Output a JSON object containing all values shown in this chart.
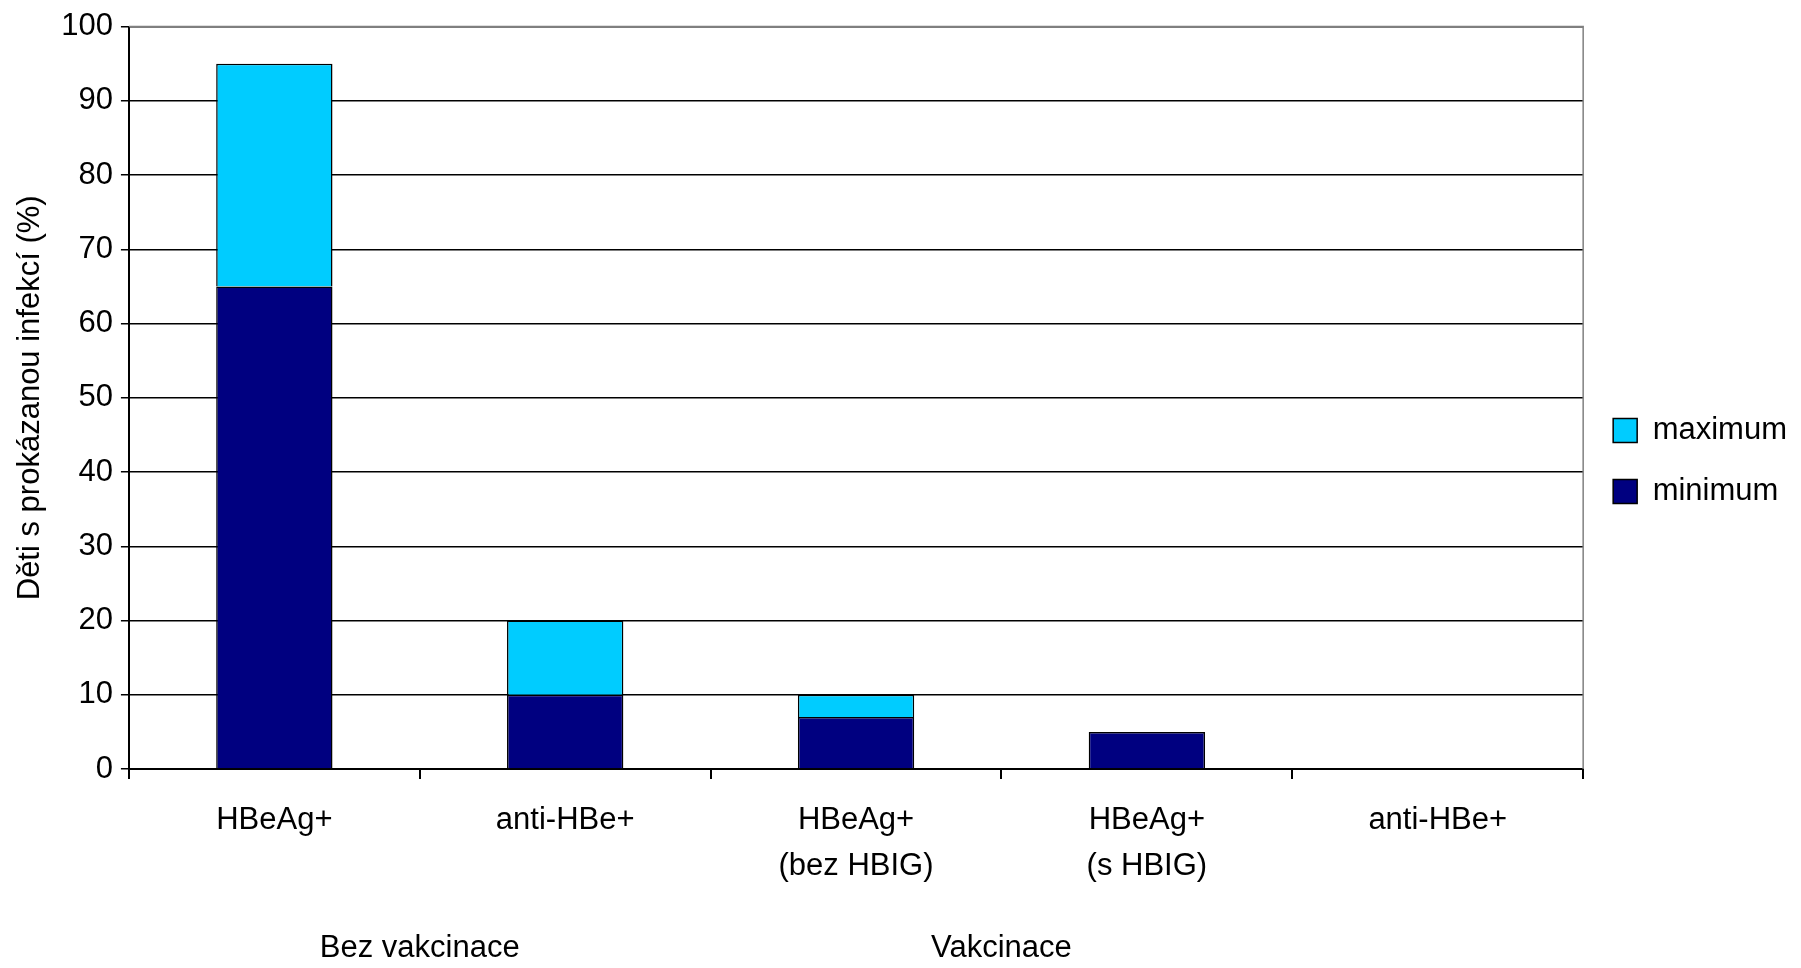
{
  "chart_data": {
    "type": "bar",
    "ylabel": "Děti s prokázanou infekcí (%)",
    "categories": [
      "HBeAg+",
      "anti-HBe+",
      "HBeAg+\n(bez HBIG)",
      "HBeAg+\n(s HBIG)",
      "anti-HBe+"
    ],
    "series": [
      {
        "name": "minimum",
        "color": "#000080",
        "values": [
          65,
          10,
          7,
          5,
          0
        ]
      },
      {
        "name": "maximum",
        "color": "#00ccff",
        "values": [
          30,
          10,
          3,
          0,
          0
        ]
      }
    ],
    "stacked": true,
    "ylim": [
      0,
      100
    ],
    "yticks": [
      0,
      10,
      20,
      30,
      40,
      50,
      60,
      70,
      80,
      90,
      100
    ],
    "grid": "y",
    "legend": "right",
    "annotations": [
      "Bez vakcinace",
      "Vakcinace"
    ]
  }
}
